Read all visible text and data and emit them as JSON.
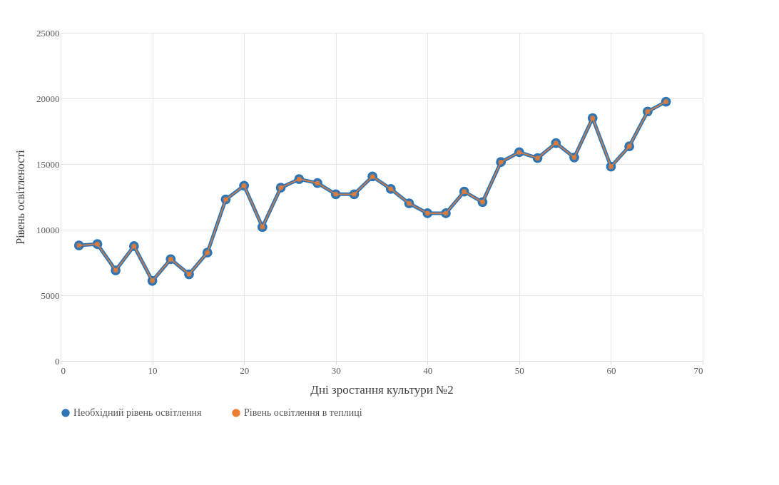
{
  "chart_data": {
    "type": "line",
    "xlabel": "Дні зростання культури №2",
    "ylabel": "Рівень освітленості",
    "x": [
      2,
      4,
      6,
      8,
      10,
      12,
      14,
      16,
      18,
      20,
      22,
      24,
      26,
      28,
      30,
      32,
      34,
      36,
      38,
      40,
      42,
      44,
      46,
      48,
      50,
      52,
      54,
      56,
      58,
      60,
      62,
      64,
      66
    ],
    "series": [
      {
        "name": "Необхідний рівень освітлення",
        "color": "#2e75b6",
        "values": [
          8800,
          8900,
          6900,
          8750,
          6100,
          7750,
          6600,
          8250,
          12300,
          13350,
          10200,
          13200,
          13850,
          13550,
          12700,
          12700,
          14050,
          13100,
          12000,
          11250,
          11250,
          12900,
          12100,
          15150,
          15900,
          15450,
          16600,
          15500,
          18500,
          14800,
          16350,
          19000,
          19750
        ]
      },
      {
        "name": "Рівень освітлення в теплиці",
        "color": "#ed7d31",
        "values": [
          8800,
          8900,
          6900,
          8750,
          6100,
          7750,
          6600,
          8250,
          12300,
          13350,
          10200,
          13200,
          13850,
          13550,
          12700,
          12700,
          14050,
          13100,
          12000,
          11250,
          11250,
          12900,
          12100,
          15150,
          15900,
          15450,
          16600,
          15500,
          18500,
          14800,
          16350,
          19000,
          19750
        ]
      }
    ],
    "xlim": [
      0,
      70
    ],
    "xticks": [
      0,
      10,
      20,
      30,
      40,
      50,
      60,
      70
    ],
    "ylim": [
      0,
      25000
    ],
    "yticks": [
      0,
      5000,
      10000,
      15000,
      20000,
      25000
    ],
    "grid": true,
    "legend": "bottom",
    "marker": "circle",
    "line_style": "solid"
  }
}
